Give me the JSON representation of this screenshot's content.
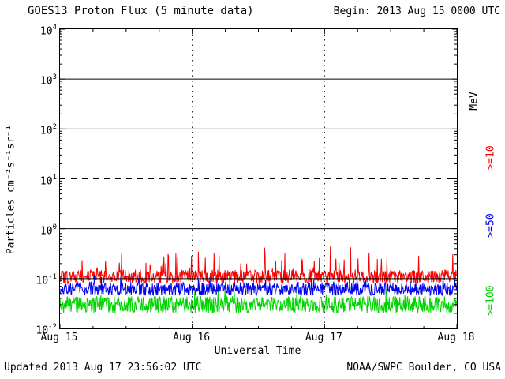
{
  "header": {
    "title": "GOES13 Proton Flux (5 minute data)",
    "begin_label": "Begin: 2013 Aug 15 0000 UTC"
  },
  "footer": {
    "updated": "Updated 2013 Aug 17 23:56:02 UTC",
    "credit": "NOAA/SWPC Boulder, CO USA"
  },
  "chart_data": {
    "type": "line",
    "title": "GOES13 Proton Flux (5 minute data)",
    "xlabel": "Universal Time",
    "ylabel": "Particles cm⁻²s⁻¹sr⁻¹",
    "x_ticks": [
      "Aug 15",
      "Aug 16",
      "Aug 17",
      "Aug 18"
    ],
    "x_range_days": 3,
    "points_per_day": 288,
    "y_scale": "log",
    "y_exponents": [
      4,
      3,
      2,
      1,
      0,
      -1,
      -2
    ],
    "ylim": [
      0.01,
      10000
    ],
    "right_axis_labels": [
      {
        "text": "MeV",
        "color": "#000000"
      },
      {
        "text": ">=10",
        "color": "#fb0000"
      },
      {
        "text": ">=50",
        "color": "#0000f0"
      },
      {
        "text": ">=100",
        "color": "#00d400"
      }
    ],
    "series": [
      {
        "name": ">=10 MeV",
        "color": "#fb0000",
        "base_flux": 0.11,
        "noise_dex": 0.14,
        "spike_dex": 0.5,
        "spike_prob": 0.08,
        "approx_range": [
          0.06,
          0.45
        ],
        "seed": 101
      },
      {
        "name": ">=50 MeV",
        "color": "#0000f0",
        "base_flux": 0.062,
        "noise_dex": 0.13,
        "spike_dex": 0.22,
        "spike_prob": 0.06,
        "approx_range": [
          0.03,
          0.15
        ],
        "seed": 202
      },
      {
        "name": ">=100 MeV",
        "color": "#00d400",
        "base_flux": 0.03,
        "noise_dex": 0.17,
        "spike_dex": 0.18,
        "spike_prob": 0.05,
        "approx_range": [
          0.012,
          0.07
        ],
        "seed": 303
      }
    ],
    "gridlines": {
      "horizontal": [
        {
          "exp": 3,
          "style": "solid"
        },
        {
          "exp": 2,
          "style": "solid"
        },
        {
          "exp": 1,
          "style": "dashed"
        },
        {
          "exp": 0,
          "style": "solid"
        },
        {
          "exp": -1,
          "style": "solid"
        }
      ],
      "vertical": [
        {
          "at": "Aug 16",
          "style": "dotted"
        },
        {
          "at": "Aug 17",
          "style": "dotted"
        }
      ]
    }
  }
}
